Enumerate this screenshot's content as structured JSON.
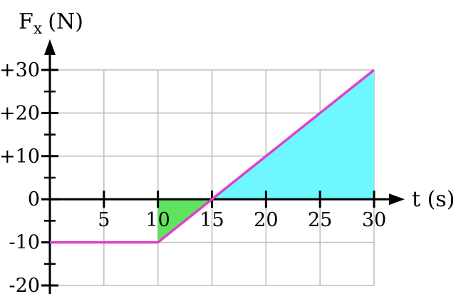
{
  "chart_data": {
    "type": "line",
    "xlabel": "t (s)",
    "ylabel_main": "F",
    "ylabel_sub": "x",
    "ylabel_unit": "(N)",
    "xlim": [
      0,
      30
    ],
    "ylim": [
      -20,
      30
    ],
    "grid": true,
    "x_ticks": [
      {
        "value": 5,
        "label": "5"
      },
      {
        "value": 10,
        "label": "10"
      },
      {
        "value": 15,
        "label": "15"
      },
      {
        "value": 20,
        "label": "20"
      },
      {
        "value": 25,
        "label": "25"
      },
      {
        "value": 30,
        "label": "30"
      }
    ],
    "y_ticks": [
      {
        "value": 30,
        "label": "+30"
      },
      {
        "value": 20,
        "label": "+20"
      },
      {
        "value": 10,
        "label": "+10"
      },
      {
        "value": 0,
        "label": "0"
      },
      {
        "value": -10,
        "label": "-10"
      },
      {
        "value": -20,
        "label": "-20"
      }
    ],
    "series": [
      {
        "color": "#e040c8",
        "x": [
          0,
          10,
          30
        ],
        "y": [
          -10,
          -10,
          30
        ]
      }
    ],
    "shaded_regions": [
      {
        "x_from": 10,
        "x_to": 15,
        "color": "#5fe35f"
      },
      {
        "x_from": 15,
        "x_to": 30,
        "color": "#6ff7ff"
      }
    ]
  }
}
